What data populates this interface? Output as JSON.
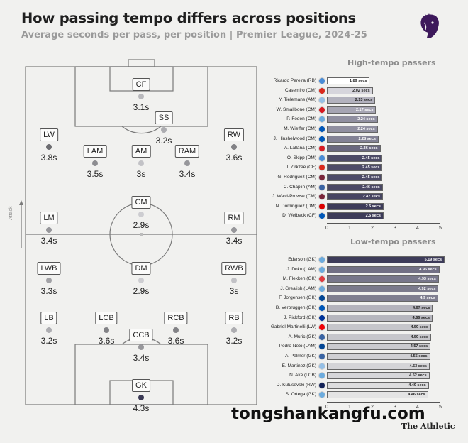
{
  "title": "How passing tempo differs across positions",
  "subtitle": "Average seconds per pass, per position | Premier League, 2024-25",
  "attack_label": "Attack",
  "brand": "The Athletic",
  "watermark": "tongshankangfu.com",
  "colors": {
    "high_bar_fast": "#ffffff",
    "high_bar_slow": "#3d3b59",
    "low_bar_fast": "#e4e4e4",
    "low_bar_slow": "#3d3b59",
    "gk_dot": "#3b3a55"
  },
  "chart_data": [
    {
      "type": "scatter",
      "name": "pitch",
      "unit": "s",
      "positions": [
        {
          "label": "CF",
          "value": "3.1s",
          "seconds": 3.1
        },
        {
          "label": "SS",
          "value": "3.2s",
          "seconds": 3.2
        },
        {
          "label": "LW",
          "value": "3.8s",
          "seconds": 3.8
        },
        {
          "label": "RW",
          "value": "3.6s",
          "seconds": 3.6
        },
        {
          "label": "LAM",
          "value": "3.5s",
          "seconds": 3.5
        },
        {
          "label": "AM",
          "value": "3s",
          "seconds": 3.0
        },
        {
          "label": "RAM",
          "value": "3.4s",
          "seconds": 3.4
        },
        {
          "label": "CM",
          "value": "2.9s",
          "seconds": 2.9
        },
        {
          "label": "LM",
          "value": "3.4s",
          "seconds": 3.4
        },
        {
          "label": "RM",
          "value": "3.4s",
          "seconds": 3.4
        },
        {
          "label": "LWB",
          "value": "3.3s",
          "seconds": 3.3
        },
        {
          "label": "DM",
          "value": "2.9s",
          "seconds": 2.9
        },
        {
          "label": "RWB",
          "value": "3s",
          "seconds": 3.0
        },
        {
          "label": "LB",
          "value": "3.2s",
          "seconds": 3.2
        },
        {
          "label": "LCB",
          "value": "3.6s",
          "seconds": 3.6
        },
        {
          "label": "RCB",
          "value": "3.6s",
          "seconds": 3.6
        },
        {
          "label": "RB",
          "value": "3.2s",
          "seconds": 3.2
        },
        {
          "label": "CCB",
          "value": "3.4s",
          "seconds": 3.4
        },
        {
          "label": "GK",
          "value": "4.3s",
          "seconds": 4.3
        }
      ]
    },
    {
      "type": "bar",
      "title": "High-tempo passers",
      "xlim": [
        0,
        5
      ],
      "ticks": [
        "0",
        "1",
        "2",
        "3",
        "4",
        "5"
      ],
      "rows": [
        {
          "name": "Ricardo Pereira (RB)",
          "club": "#4a8cd6",
          "value": 1.89,
          "label": "1.89 secs"
        },
        {
          "name": "Casemiro (CM)",
          "club": "#da291c",
          "value": 2.02,
          "label": "2.02 secs"
        },
        {
          "name": "Y. Tielemans (AM)",
          "club": "#95bfe5",
          "value": 2.13,
          "label": "2.13 secs"
        },
        {
          "name": "W. Smallbone (CM)",
          "club": "#d71920",
          "value": 2.17,
          "label": "2.17 secs"
        },
        {
          "name": "P. Foden (CM)",
          "club": "#6cabdd",
          "value": 2.24,
          "label": "2.24 secs"
        },
        {
          "name": "M. Wieffer (CM)",
          "club": "#0057b8",
          "value": 2.24,
          "label": "2.24 secs"
        },
        {
          "name": "J. Hinshelwood (CM)",
          "club": "#0057b8",
          "value": 2.28,
          "label": "2.28 secs"
        },
        {
          "name": "A. Lallana (CM)",
          "club": "#d71920",
          "value": 2.36,
          "label": "2.36 secs"
        },
        {
          "name": "O. Skipp (DM)",
          "club": "#4a8cd6",
          "value": 2.45,
          "label": "2.45 secs"
        },
        {
          "name": "J. Zirkzee (CF)",
          "club": "#da291c",
          "value": 2.45,
          "label": "2.45 secs"
        },
        {
          "name": "G. Rodriguez (CM)",
          "club": "#7a263a",
          "value": 2.45,
          "label": "2.45 secs"
        },
        {
          "name": "C. Chaplin (AM)",
          "club": "#3a64a3",
          "value": 2.46,
          "label": "2.46 secs"
        },
        {
          "name": "J. Ward-Prowse (CM)",
          "club": "#7a263a",
          "value": 2.47,
          "label": "2.47 secs"
        },
        {
          "name": "N. Dominguez (DM)",
          "club": "#dd0000",
          "value": 2.5,
          "label": "2.5 secs"
        },
        {
          "name": "D. Welbeck (CF)",
          "club": "#0057b8",
          "value": 2.5,
          "label": "2.5 secs"
        }
      ]
    },
    {
      "type": "bar",
      "title": "Low-tempo passers",
      "xlim": [
        0,
        5
      ],
      "ticks": [
        "0",
        "1",
        "2",
        "3",
        "4",
        "5"
      ],
      "rows": [
        {
          "name": "Ederson (GK)",
          "club": "#6cabdd",
          "value": 5.19,
          "label": "5.19 secs"
        },
        {
          "name": "J. Doku (LAM)",
          "club": "#6cabdd",
          "value": 4.96,
          "label": "4.96 secs"
        },
        {
          "name": "M. Flekken (GK)",
          "club": "#e03a3e",
          "value": 4.93,
          "label": "4.93 secs"
        },
        {
          "name": "J. Grealish (LAM)",
          "club": "#6cabdd",
          "value": 4.92,
          "label": "4.92 secs"
        },
        {
          "name": "F. Jorgensen (GK)",
          "club": "#034694",
          "value": 4.9,
          "label": "4.9 secs"
        },
        {
          "name": "B. Verbruggen (GK)",
          "club": "#0057b8",
          "value": 4.67,
          "label": "4.67 secs"
        },
        {
          "name": "J. Pickford (GK)",
          "club": "#003399",
          "value": 4.66,
          "label": "4.66 secs"
        },
        {
          "name": "Gabriel Martinelli (LW)",
          "club": "#ef0107",
          "value": 4.59,
          "label": "4.59 secs"
        },
        {
          "name": "A. Muric (GK)",
          "club": "#3a64a3",
          "value": 4.59,
          "label": "4.59 secs"
        },
        {
          "name": "Pedro Neto (LAM)",
          "club": "#034694",
          "value": 4.57,
          "label": "4.57 secs"
        },
        {
          "name": "A. Palmer (GK)",
          "club": "#3a64a3",
          "value": 4.55,
          "label": "4.55 secs"
        },
        {
          "name": "E. Martinez (GK)",
          "club": "#95bfe5",
          "value": 4.53,
          "label": "4.53 secs"
        },
        {
          "name": "N. Ake (LCB)",
          "club": "#6cabdd",
          "value": 4.52,
          "label": "4.52 secs"
        },
        {
          "name": "D. Kulusevski (RW)",
          "club": "#132257",
          "value": 4.49,
          "label": "4.49 secs"
        },
        {
          "name": "S. Ortega (GK)",
          "club": "#6cabdd",
          "value": 4.46,
          "label": "4.46 secs"
        }
      ]
    }
  ]
}
